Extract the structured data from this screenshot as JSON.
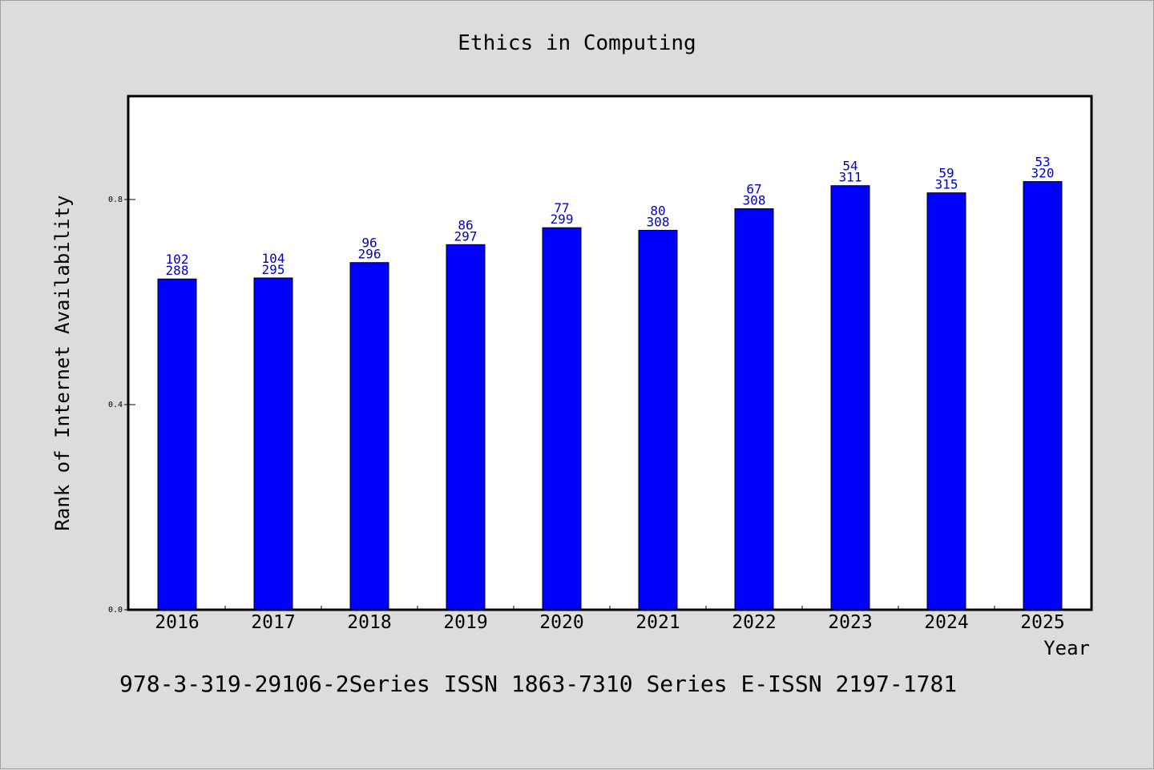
{
  "chart_data": {
    "type": "bar",
    "title": "Ethics in Computing",
    "xlabel": "Year",
    "ylabel": "Rank of Internet Availability",
    "categories": [
      "2016",
      "2017",
      "2018",
      "2019",
      "2020",
      "2021",
      "2022",
      "2023",
      "2024",
      "2025"
    ],
    "values": [
      0.645,
      0.647,
      0.677,
      0.712,
      0.745,
      0.74,
      0.782,
      0.827,
      0.813,
      0.835
    ],
    "labels_top": [
      "102",
      "104",
      "96",
      "86",
      "77",
      "80",
      "67",
      "54",
      "59",
      "53"
    ],
    "labels_bottom": [
      "288",
      "295",
      "296",
      "297",
      "299",
      "308",
      "308",
      "311",
      "315",
      "320"
    ],
    "yticks": [
      0.0,
      0.4,
      0.8
    ],
    "ytick_labels": [
      "0.0",
      "0.4",
      "0.8"
    ],
    "ylim": [
      0,
      1.0
    ],
    "grid": false,
    "bar_color": "#0000ff",
    "label_color": "#0000cc"
  },
  "footer": "978-3-319-29106-2Series ISSN 1863-7310 Series E-ISSN 2197-1781"
}
